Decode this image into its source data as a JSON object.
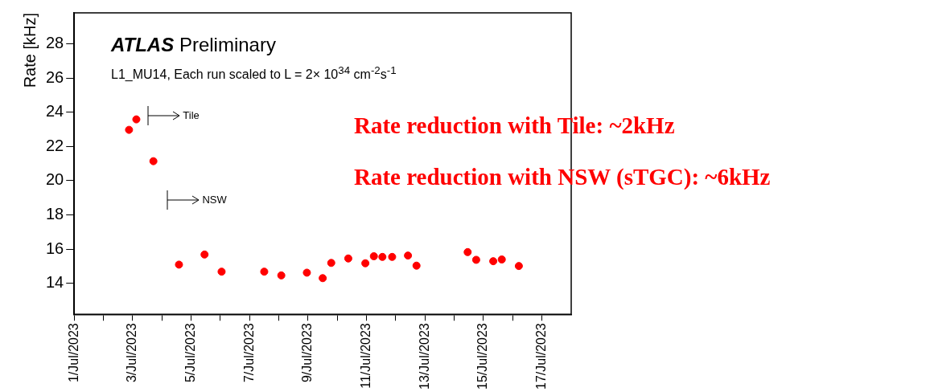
{
  "chart_data": {
    "type": "scatter",
    "title": "ATLAS Preliminary",
    "subtitle": "L1_MU14, Each run scaled to L = 2× 10$^{34}$ cm$^{-2}$s$^{-1}$",
    "ylabel": "Rate [kHz]",
    "x": [
      "2023-07-02T21:00",
      "2023-07-03T03:00",
      "2023-07-03T17:00",
      "2023-07-04T14:00",
      "2023-07-05T11:00",
      "2023-07-06T01:00",
      "2023-07-07T12:00",
      "2023-07-08T02:00",
      "2023-07-08T23:00",
      "2023-07-09T12:00",
      "2023-07-09T19:00",
      "2023-07-10T09:00",
      "2023-07-10T23:00",
      "2023-07-11T06:00",
      "2023-07-11T13:00",
      "2023-07-11T21:00",
      "2023-07-12T10:00",
      "2023-07-12T17:00",
      "2023-07-14T11:00",
      "2023-07-14T18:00",
      "2023-07-15T08:00",
      "2023-07-15T15:00",
      "2023-07-16T05:00"
    ],
    "series": [
      {
        "color": "#ff0000",
        "values": [
          22.97,
          23.58,
          21.14,
          15.1,
          15.69,
          14.69,
          14.69,
          14.47,
          14.63,
          14.31,
          15.2,
          15.46,
          15.18,
          15.59,
          15.55,
          15.55,
          15.63,
          15.04,
          15.83,
          15.38,
          15.3,
          15.4,
          15.02
        ]
      }
    ],
    "marker": "circle",
    "grid": false,
    "legend": false,
    "xlim": [
      "2023-07-01",
      "2023-07-18"
    ],
    "xticks": [
      {
        "value": "2023-07-01",
        "label": "1/Jul/2023"
      },
      {
        "value": "2023-07-02",
        "label": null
      },
      {
        "value": "2023-07-03",
        "label": "3/Jul/2023"
      },
      {
        "value": "2023-07-04",
        "label": null
      },
      {
        "value": "2023-07-05",
        "label": "5/Jul/2023"
      },
      {
        "value": "2023-07-06",
        "label": null
      },
      {
        "value": "2023-07-07",
        "label": "7/Jul/2023"
      },
      {
        "value": "2023-07-08",
        "label": null
      },
      {
        "value": "2023-07-09",
        "label": "9/Jul/2023"
      },
      {
        "value": "2023-07-10",
        "label": null
      },
      {
        "value": "2023-07-11",
        "label": "11/Jul/2023"
      },
      {
        "value": "2023-07-12",
        "label": null
      },
      {
        "value": "2023-07-13",
        "label": "13/Jul/2023"
      },
      {
        "value": "2023-07-14",
        "label": null
      },
      {
        "value": "2023-07-15",
        "label": "15/Jul/2023"
      },
      {
        "value": "2023-07-16",
        "label": null
      },
      {
        "value": "2023-07-17",
        "label": "17/Jul/2023"
      }
    ],
    "ylim": [
      12.2,
      29.8
    ],
    "yticks": [
      14,
      16,
      18,
      20,
      22,
      24,
      26,
      28
    ],
    "annotations": [
      "Tile",
      "NSW",
      "Rate reduction with Tile: ~2kHz",
      "Rate reduction with NSW (sTGC): ~6kHz"
    ]
  }
}
